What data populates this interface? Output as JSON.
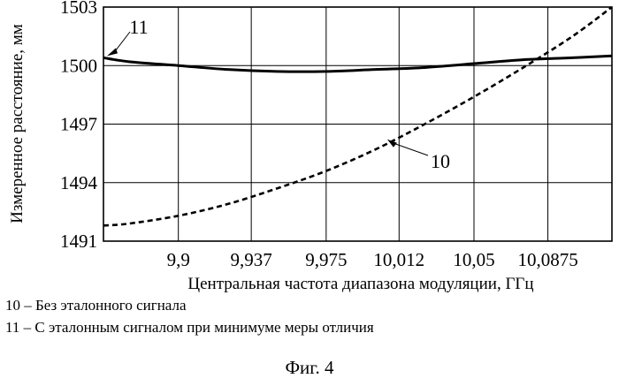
{
  "chart_data": {
    "type": "line",
    "xlabel": "Центральная частота диапазона модуляции, ГГц",
    "ylabel": "Измеренное расстояние, мм",
    "xlim": [
      9.862,
      10.12
    ],
    "ylim": [
      1491,
      1503
    ],
    "x_ticks": [
      9.9,
      9.937,
      9.975,
      10.012,
      10.05,
      10.0875
    ],
    "x_tick_labels": [
      "9,9",
      "9,937",
      "9,975",
      "10,012",
      "10,05",
      "10,0875"
    ],
    "y_ticks": [
      1491,
      1494,
      1497,
      1500,
      1503
    ],
    "y_tick_labels": [
      "1491",
      "1494",
      "1497",
      "1500",
      "1503"
    ],
    "grid": true,
    "series": [
      {
        "name": "11",
        "style": "solid",
        "x": [
          9.862,
          9.875,
          9.9,
          9.925,
          9.95,
          9.975,
          10.0,
          10.025,
          10.05,
          10.075,
          10.1,
          10.12
        ],
        "values": [
          1500.4,
          1500.2,
          1500.0,
          1499.8,
          1499.7,
          1499.7,
          1499.8,
          1499.9,
          1500.1,
          1500.3,
          1500.4,
          1500.5
        ]
      },
      {
        "name": "10",
        "style": "dashed",
        "x": [
          9.862,
          9.875,
          9.9,
          9.925,
          9.95,
          9.975,
          10.0,
          10.025,
          10.05,
          10.075,
          10.1,
          10.12
        ],
        "values": [
          1491.8,
          1491.9,
          1492.3,
          1492.9,
          1493.7,
          1494.6,
          1495.7,
          1497.0,
          1498.4,
          1499.9,
          1501.5,
          1503.0
        ]
      }
    ],
    "annotations": [
      {
        "text": "11",
        "x": 9.862,
        "y": 1500.4
      },
      {
        "text": "10",
        "x": 10.006,
        "y": 1496.4
      }
    ]
  },
  "legend": [
    "10 – Без эталонного сигнала",
    "11 – С эталонным сигналом при минимуме меры отличия"
  ],
  "caption": "Фиг. 4"
}
